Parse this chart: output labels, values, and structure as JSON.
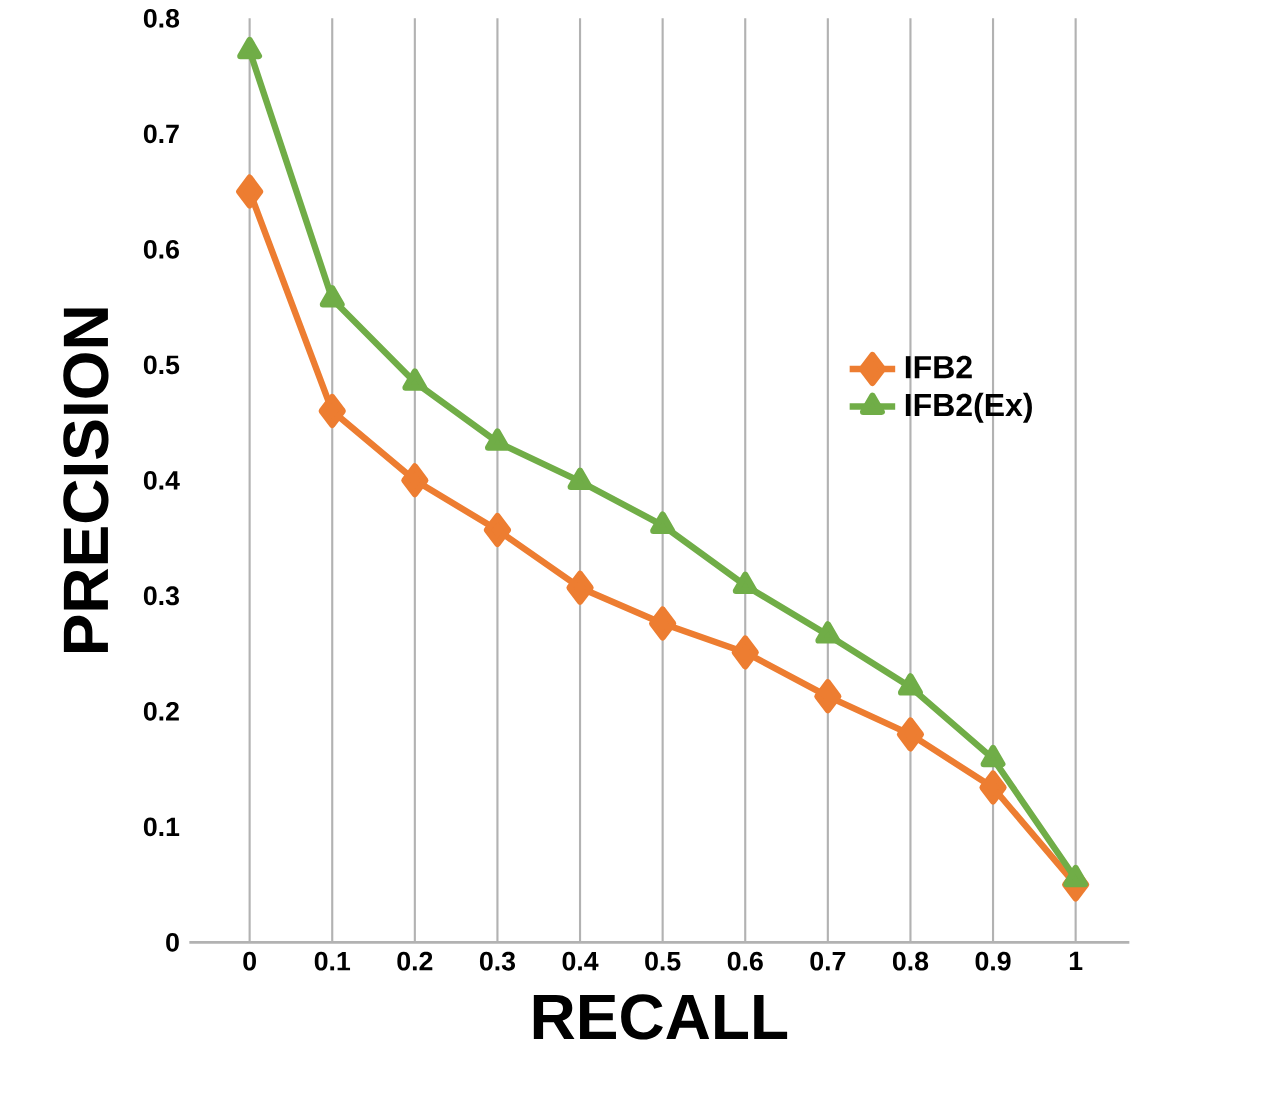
{
  "chart_data": {
    "type": "line",
    "xlabel": "RECALL",
    "ylabel": "PRECISION",
    "categories": [
      "0",
      "0.1",
      "0.2",
      "0.3",
      "0.4",
      "0.5",
      "0.6",
      "0.7",
      "0.8",
      "0.9",
      "1"
    ],
    "series": [
      {
        "name": "IFB2",
        "color": "#ed7d31",
        "marker": "diamond",
        "values": [
          0.65,
          0.46,
          0.4,
          0.357,
          0.307,
          0.276,
          0.251,
          0.213,
          0.18,
          0.134,
          0.05
        ]
      },
      {
        "name": "IFB2(Ex)",
        "color": "#70ad47",
        "marker": "triangle",
        "values": [
          0.772,
          0.557,
          0.485,
          0.433,
          0.399,
          0.361,
          0.309,
          0.266,
          0.221,
          0.159,
          0.055
        ]
      }
    ],
    "ylim": [
      0,
      0.8
    ],
    "yticks": [
      0,
      0.1,
      0.2,
      0.3,
      0.4,
      0.5,
      0.6,
      0.7,
      0.8
    ],
    "grid": "x",
    "legend": "right",
    "line_style": "solid"
  }
}
